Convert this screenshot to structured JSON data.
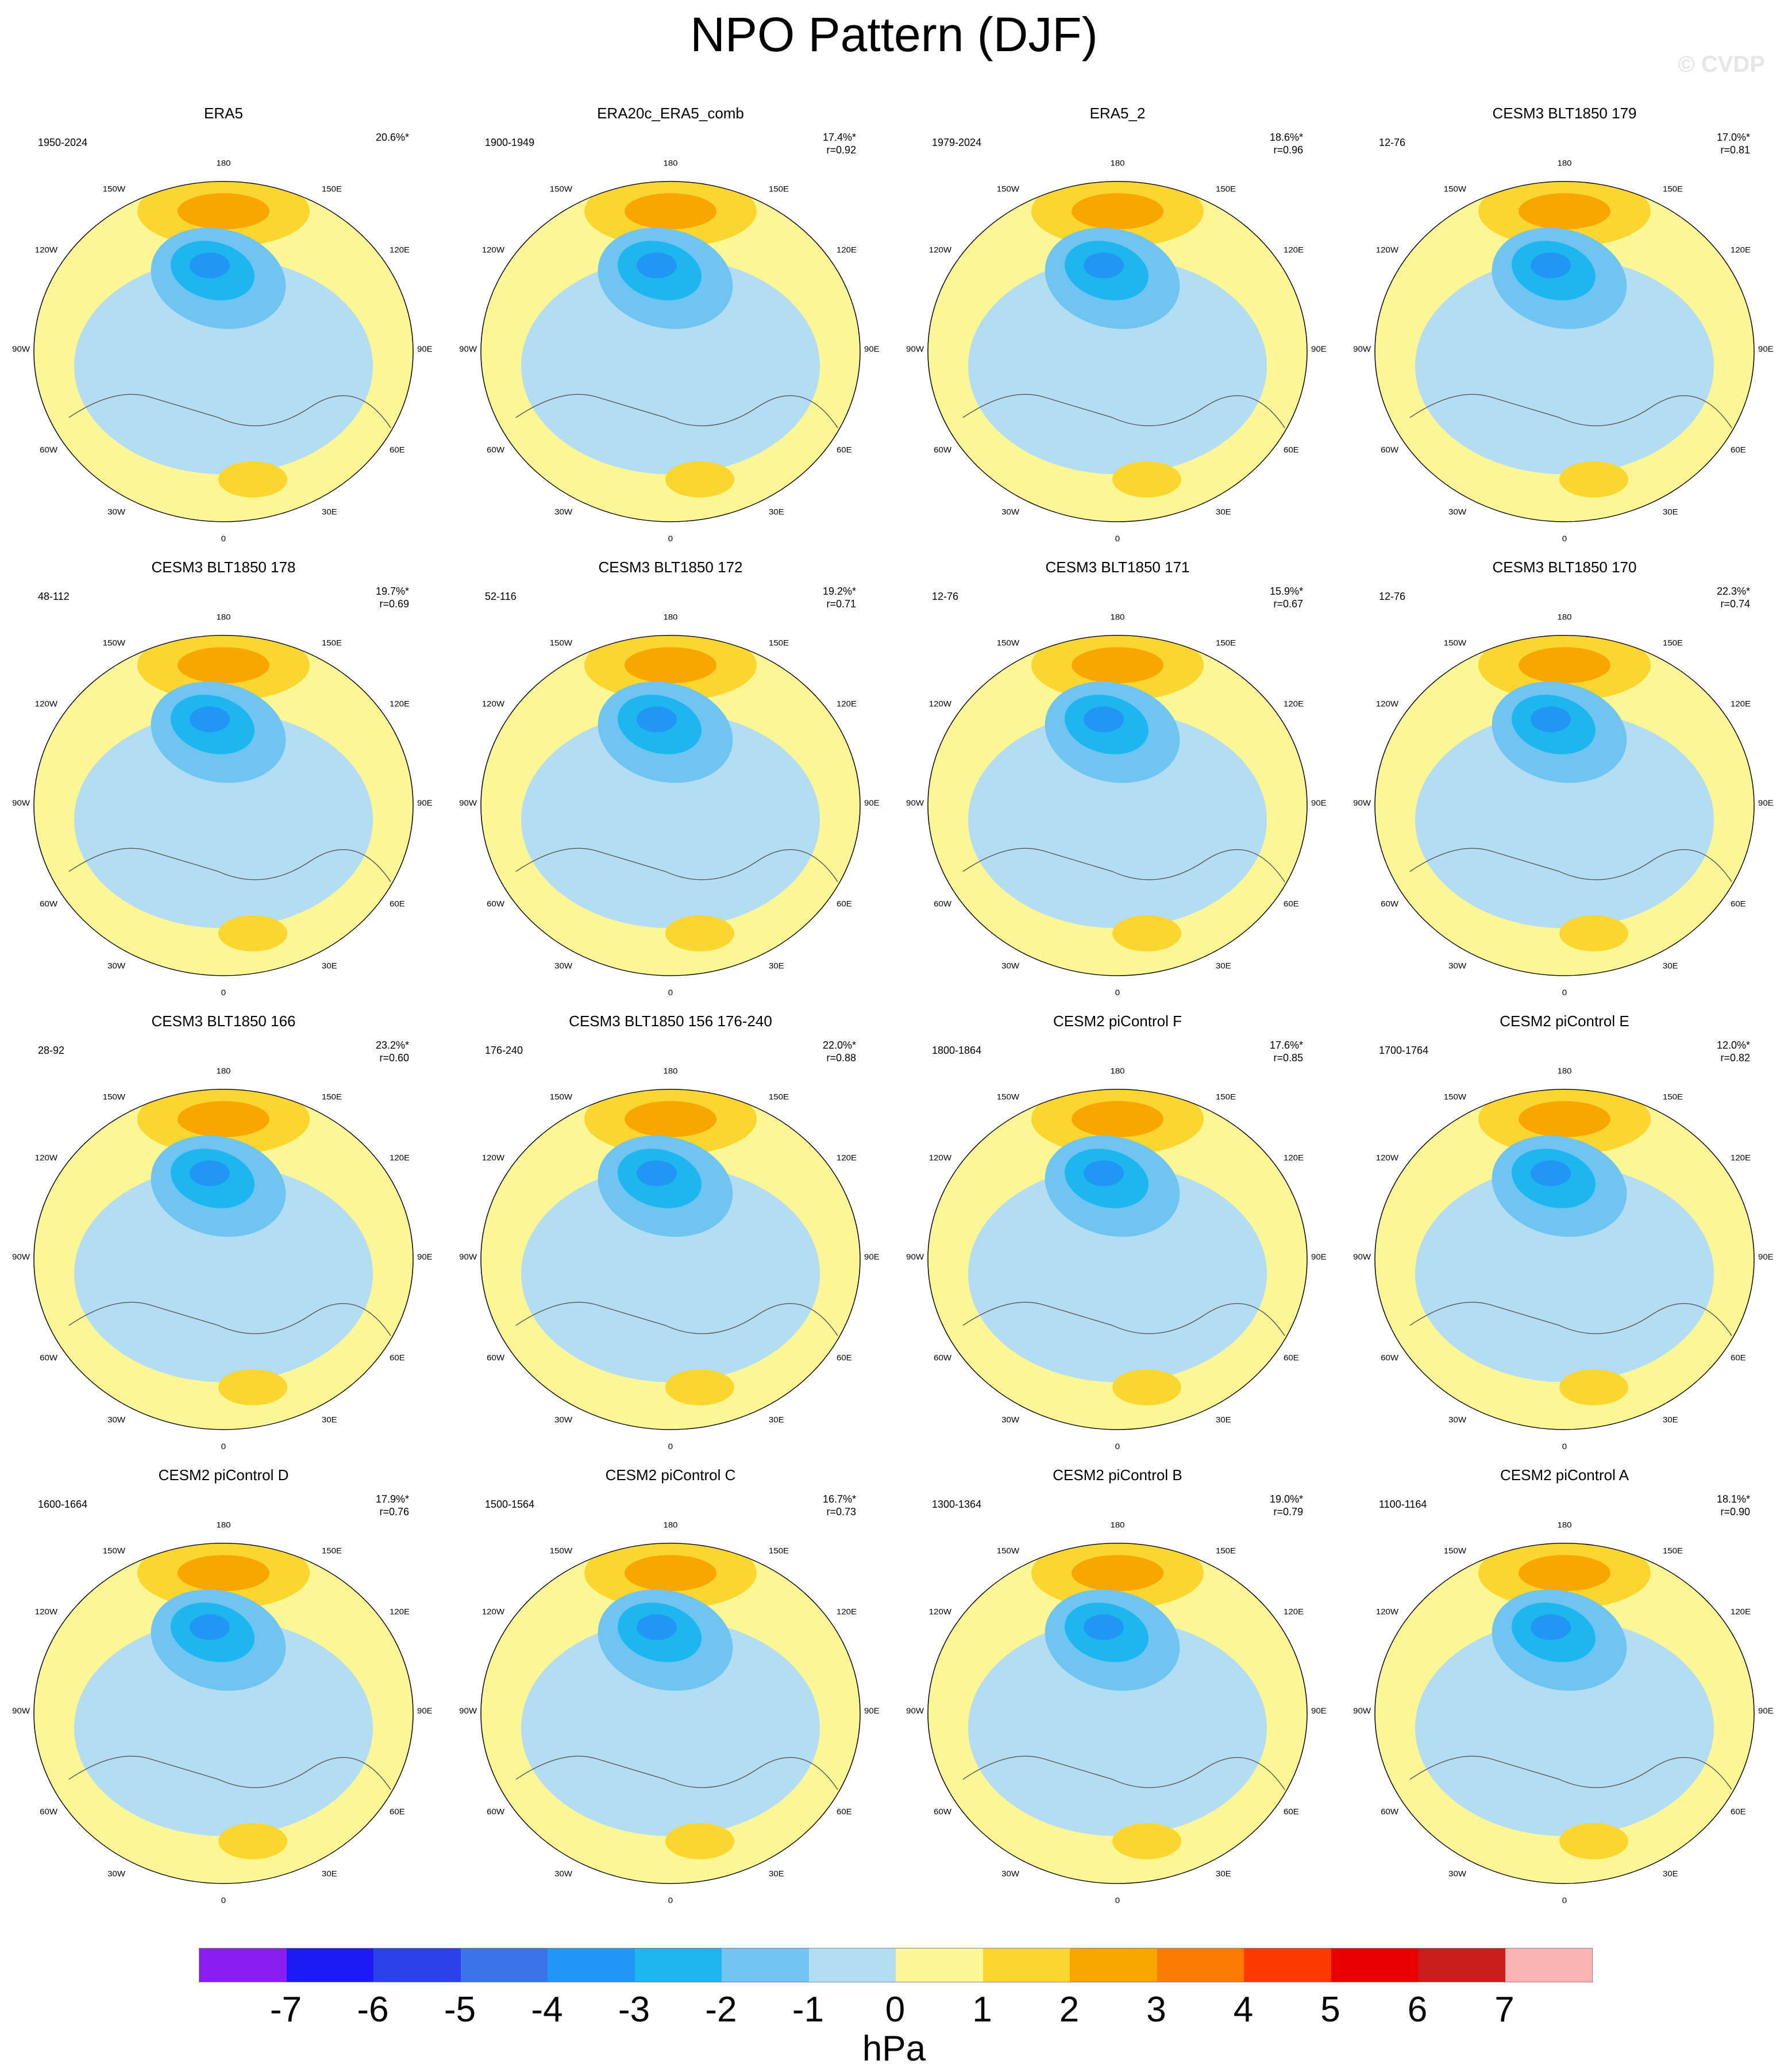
{
  "title": "NPO Pattern (DJF)",
  "watermark": "© CVDP",
  "map_labels": {
    "top": "180",
    "bottom": "0",
    "left": "90W",
    "right": "90E",
    "tl1": "150W",
    "tl2": "120W",
    "bl1": "60W",
    "bl2": "30W",
    "tr1": "150E",
    "tr2": "120E",
    "br1": "60E",
    "br2": "30E"
  },
  "palette": {
    "ocean_low": "#b4dcf2",
    "ocean_high": "#fbf696",
    "pos1": "#fbd530",
    "pos2": "#f9a600",
    "pos3": "#f97b00",
    "neg2": "#70c4f0",
    "neg3": "#1eb6f0",
    "neg4": "#2196f3",
    "neg5": "#3a74e8",
    "neg6": "#3a4fe0"
  },
  "panels": [
    {
      "title": "ERA5",
      "period": "1950-2024",
      "pct": "20.6%*",
      "r": ""
    },
    {
      "title": "ERA20c_ERA5_comb",
      "period": "1900-1949",
      "pct": "17.4%*",
      "r": "r=0.92"
    },
    {
      "title": "ERA5_2",
      "period": "1979-2024",
      "pct": "18.6%*",
      "r": "r=0.96"
    },
    {
      "title": "CESM3 BLT1850 179",
      "period": "12-76",
      "pct": "17.0%*",
      "r": "r=0.81"
    },
    {
      "title": "CESM3 BLT1850 178",
      "period": "48-112",
      "pct": "19.7%*",
      "r": "r=0.69"
    },
    {
      "title": "CESM3 BLT1850 172",
      "period": "52-116",
      "pct": "19.2%*",
      "r": "r=0.71"
    },
    {
      "title": "CESM3 BLT1850 171",
      "period": "12-76",
      "pct": "15.9%*",
      "r": "r=0.67"
    },
    {
      "title": "CESM3 BLT1850 170",
      "period": "12-76",
      "pct": "22.3%*",
      "r": "r=0.74"
    },
    {
      "title": "CESM3 BLT1850 166",
      "period": "28-92",
      "pct": "23.2%*",
      "r": "r=0.60"
    },
    {
      "title": "CESM3 BLT1850 156 176-240",
      "period": "176-240",
      "pct": "22.0%*",
      "r": "r=0.88"
    },
    {
      "title": "CESM2 piControl F",
      "period": "1800-1864",
      "pct": "17.6%*",
      "r": "r=0.85"
    },
    {
      "title": "CESM2 piControl E",
      "period": "1700-1764",
      "pct": "12.0%*",
      "r": "r=0.82"
    },
    {
      "title": "CESM2 piControl D",
      "period": "1600-1664",
      "pct": "17.9%*",
      "r": "r=0.76"
    },
    {
      "title": "CESM2 piControl C",
      "period": "1500-1564",
      "pct": "16.7%*",
      "r": "r=0.73"
    },
    {
      "title": "CESM2 piControl B",
      "period": "1300-1364",
      "pct": "19.0%*",
      "r": "r=0.79"
    },
    {
      "title": "CESM2 piControl A",
      "period": "1100-1164",
      "pct": "18.1%*",
      "r": "r=0.90"
    }
  ],
  "colorbar": {
    "unit": "hPa",
    "colors": [
      "#8a1ef0",
      "#1a1af5",
      "#2a40e8",
      "#3a74e8",
      "#2196f3",
      "#1eb6f0",
      "#70c4f0",
      "#b4dcf2",
      "#fbf696",
      "#fbd530",
      "#f9a600",
      "#f97b00",
      "#fb3a00",
      "#e80000",
      "#c81e1e",
      "#fbb4b4"
    ],
    "ticks": [
      "-7",
      "-6",
      "-5",
      "-4",
      "-3",
      "-2",
      "-1",
      "0",
      "1",
      "2",
      "3",
      "4",
      "5",
      "6",
      "7"
    ]
  }
}
